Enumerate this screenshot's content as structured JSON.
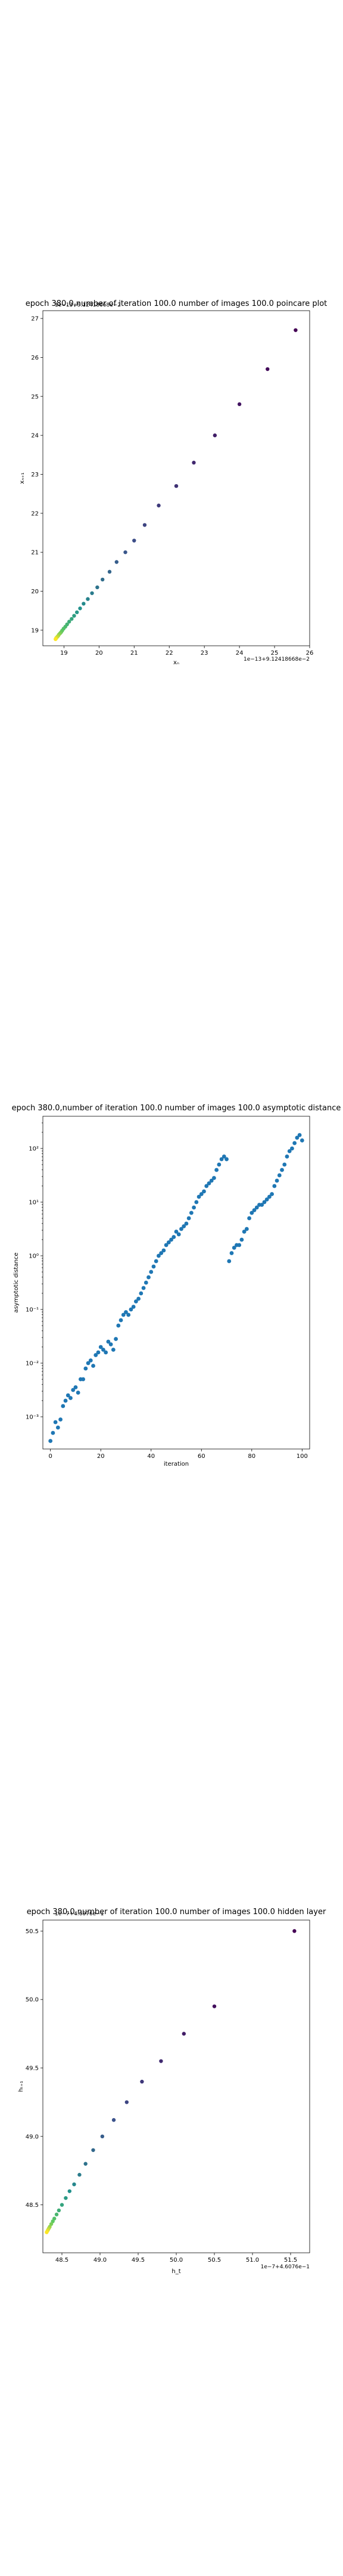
{
  "chart_data": [
    {
      "type": "scatter",
      "title": "epoch 380.0,number of iteration 100.0 number of images 100.0 poincare plot",
      "xlabel": "xₙ",
      "ylabel": "xₙ₊₁",
      "offset_label": "1e−13+9.12418668e−2",
      "legend_label": "1e−13+9.12418668e−2",
      "xlim": [
        18.4,
        26.0
      ],
      "ylim": [
        18.6,
        27.2
      ],
      "xticks": [
        "19",
        "20",
        "21",
        "22",
        "23",
        "24",
        "25",
        "26"
      ],
      "yticks": [
        "19",
        "20",
        "21",
        "22",
        "23",
        "24",
        "25",
        "26",
        "27"
      ],
      "x": [
        25.6,
        24.8,
        24.0,
        23.3,
        22.7,
        22.2,
        21.7,
        21.3,
        21.0,
        20.75,
        20.5,
        20.3,
        20.1,
        19.95,
        19.8,
        19.68,
        19.56,
        19.46,
        19.37,
        19.29,
        19.22,
        19.15,
        19.09,
        19.04,
        18.99,
        18.95,
        18.92,
        18.89,
        18.86,
        18.84,
        18.82,
        18.8,
        18.78,
        18.77,
        18.76
      ],
      "y": [
        26.7,
        25.7,
        24.8,
        24.0,
        23.3,
        22.7,
        22.2,
        21.7,
        21.3,
        21.0,
        20.75,
        20.5,
        20.3,
        20.1,
        19.95,
        19.8,
        19.68,
        19.56,
        19.46,
        19.37,
        19.29,
        19.22,
        19.15,
        19.09,
        19.04,
        18.99,
        18.95,
        18.92,
        18.89,
        18.86,
        18.84,
        18.82,
        18.8,
        18.78,
        18.77
      ]
    },
    {
      "type": "scatter",
      "title": "epoch 380.0,number of iteration 100.0  number of images 100.0 asymptotic distance",
      "xlabel": "iteration",
      "ylabel": "asymptotic distance",
      "ylog": true,
      "xlim": [
        -3,
        103
      ],
      "ylim_exp": [
        -3.6,
        2.6
      ],
      "xticks": [
        0,
        20,
        40,
        60,
        80,
        100
      ],
      "ytick_labels": [
        "10⁻³",
        "10⁻²",
        "10⁻¹",
        "10⁰",
        "10¹",
        "10²"
      ],
      "ytick_exps": [
        -3,
        -2,
        -1,
        0,
        1,
        2
      ],
      "color": "#1f77b4",
      "x": [
        0,
        1,
        2,
        3,
        4,
        5,
        6,
        7,
        8,
        9,
        10,
        11,
        12,
        13,
        14,
        15,
        16,
        17,
        18,
        19,
        20,
        21,
        22,
        23,
        24,
        25,
        26,
        27,
        28,
        29,
        30,
        31,
        32,
        33,
        34,
        35,
        36,
        37,
        38,
        39,
        40,
        41,
        42,
        43,
        44,
        45,
        46,
        47,
        48,
        49,
        50,
        51,
        52,
        53,
        54,
        55,
        56,
        57,
        58,
        59,
        60,
        61,
        62,
        63,
        64,
        65,
        66,
        67,
        68,
        69,
        70,
        71,
        72,
        73,
        74,
        75,
        76,
        77,
        78,
        79,
        80,
        81,
        82,
        83,
        84,
        85,
        86,
        87,
        88,
        89,
        90,
        91,
        92,
        93,
        94,
        95,
        96,
        97,
        98,
        99,
        100
      ],
      "y_exp": [
        -3.45,
        -3.3,
        -3.1,
        -3.2,
        -3.05,
        -2.8,
        -2.7,
        -2.6,
        -2.65,
        -2.5,
        -2.45,
        -2.55,
        -2.3,
        -2.3,
        -2.1,
        -2.0,
        -1.95,
        -2.05,
        -1.85,
        -1.8,
        -1.7,
        -1.75,
        -1.8,
        -1.6,
        -1.65,
        -1.75,
        -1.55,
        -1.3,
        -1.2,
        -1.1,
        -1.05,
        -1.1,
        -1.0,
        -0.95,
        -0.85,
        -0.8,
        -0.7,
        -0.6,
        -0.5,
        -0.4,
        -0.3,
        -0.2,
        -0.1,
        0.0,
        0.05,
        0.1,
        0.2,
        0.25,
        0.3,
        0.35,
        0.45,
        0.4,
        0.5,
        0.55,
        0.6,
        0.7,
        0.8,
        0.9,
        1.0,
        1.1,
        1.15,
        1.2,
        1.3,
        1.35,
        1.4,
        1.45,
        1.6,
        1.7,
        1.8,
        1.85,
        1.8,
        -0.1,
        0.05,
        0.15,
        0.2,
        0.2,
        0.3,
        0.45,
        0.5,
        0.7,
        0.8,
        0.85,
        0.9,
        0.95,
        0.95,
        1.0,
        1.05,
        1.1,
        1.15,
        1.3,
        1.4,
        1.5,
        1.6,
        1.7,
        1.85,
        1.95,
        2.0,
        2.1,
        2.2,
        2.25,
        2.15
      ]
    },
    {
      "type": "scatter",
      "title": "epoch 380.0,number of iteration 100.0  number of images 100.0 hidden layer",
      "xlabel": "h_t",
      "ylabel": "hₜ₊₁",
      "offset_label": "1e−7+4.6076e−1",
      "legend_label": "1e−7+4.6076e−1",
      "xlim": [
        48.25,
        51.75
      ],
      "ylim": [
        48.15,
        50.58
      ],
      "xticks": [
        "48.5",
        "49.0",
        "49.5",
        "50.0",
        "50.5",
        "51.0",
        "51.5"
      ],
      "yticks": [
        "48.5",
        "49.0",
        "49.5",
        "50.0",
        "50.5"
      ],
      "x": [
        51.55,
        50.5,
        50.1,
        49.8,
        49.55,
        49.35,
        49.18,
        49.03,
        48.91,
        48.81,
        48.73,
        48.66,
        48.6,
        48.55,
        48.5,
        48.46,
        48.43,
        48.4,
        48.38,
        48.36,
        48.34,
        48.33,
        48.32,
        48.31,
        48.3
      ],
      "y": [
        50.5,
        49.95,
        49.75,
        49.55,
        49.4,
        49.25,
        49.12,
        49.0,
        48.9,
        48.8,
        48.72,
        48.65,
        48.6,
        48.55,
        48.5,
        48.46,
        48.43,
        48.4,
        48.38,
        48.36,
        48.34,
        48.33,
        48.32,
        48.31,
        48.3
      ]
    }
  ]
}
